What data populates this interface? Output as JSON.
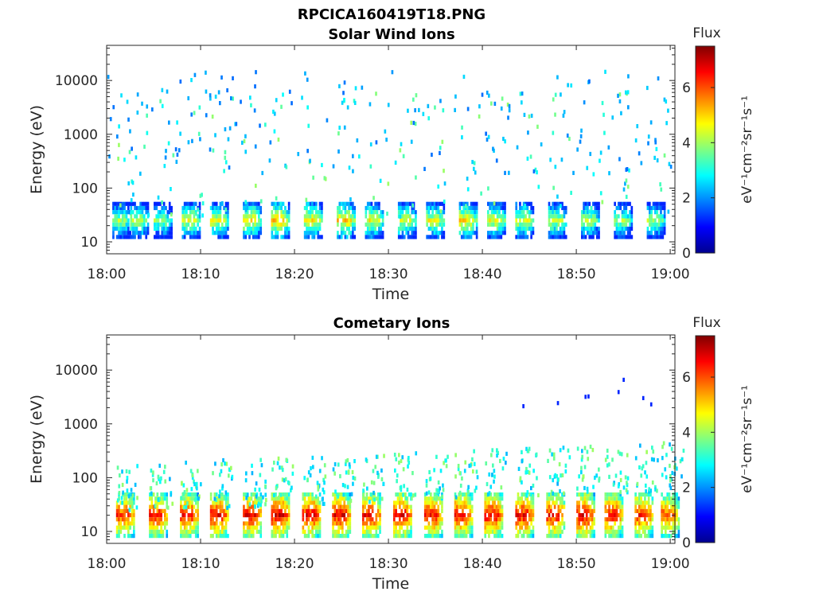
{
  "figure": {
    "title": "RPCICA160419T18.PNG",
    "colorbar_label": "eV⁻¹cm⁻²sr⁻¹s⁻¹",
    "colorbar_title": "Flux",
    "colorbar_ticks": [
      "0",
      "2",
      "4",
      "6"
    ],
    "colormap": [
      "#00008f",
      "#0000ff",
      "#0080ff",
      "#00ffff",
      "#80ff80",
      "#ffff00",
      "#ff8000",
      "#ff0000",
      "#800000"
    ]
  },
  "chart_data": [
    {
      "type": "heatmap",
      "title": "Solar Wind Ions",
      "xlabel": "Time",
      "ylabel": "Energy (eV)",
      "x_ticks": [
        "18:00",
        "18:10",
        "18:20",
        "18:30",
        "18:40",
        "18:50",
        "19:00"
      ],
      "y_ticks": [
        "10",
        "100",
        "1000",
        "10000"
      ],
      "y_scale": "log",
      "ylim": [
        6,
        45000
      ],
      "xlim_minutes": [
        0,
        60.5
      ],
      "clim": [
        0,
        7.5
      ],
      "bursts": [
        {
          "t": 0.6,
          "e": 25,
          "flux": 4.6
        },
        {
          "t": 2.5,
          "e": 25,
          "flux": 4.8
        },
        {
          "t": 5.0,
          "e": 25,
          "flux": 4.4
        },
        {
          "t": 8.0,
          "e": 25,
          "flux": 5.1
        },
        {
          "t": 11.0,
          "e": 25,
          "flux": 5.0
        },
        {
          "t": 14.5,
          "e": 25,
          "flux": 5.3
        },
        {
          "t": 17.5,
          "e": 25,
          "flux": 5.6
        },
        {
          "t": 21.0,
          "e": 25,
          "flux": 5.3
        },
        {
          "t": 24.5,
          "e": 25,
          "flux": 5.5
        },
        {
          "t": 27.5,
          "e": 25,
          "flux": 5.1
        },
        {
          "t": 31.0,
          "e": 25,
          "flux": 4.9
        },
        {
          "t": 34.0,
          "e": 25,
          "flux": 5.0
        },
        {
          "t": 37.5,
          "e": 25,
          "flux": 5.4
        },
        {
          "t": 40.5,
          "e": 25,
          "flux": 5.1
        },
        {
          "t": 43.5,
          "e": 25,
          "flux": 5.0
        },
        {
          "t": 47.0,
          "e": 25,
          "flux": 4.8
        },
        {
          "t": 50.5,
          "e": 25,
          "flux": 4.7
        },
        {
          "t": 54.0,
          "e": 25,
          "flux": 4.6
        },
        {
          "t": 57.5,
          "e": 25,
          "flux": 4.6
        }
      ]
    },
    {
      "type": "heatmap",
      "title": "Cometary Ions",
      "xlabel": "Time",
      "ylabel": "Energy (eV)",
      "x_ticks": [
        "18:00",
        "18:10",
        "18:20",
        "18:30",
        "18:40",
        "18:50",
        "19:00"
      ],
      "y_ticks": [
        "10",
        "100",
        "1000",
        "10000"
      ],
      "y_scale": "log",
      "ylim": [
        6,
        45000
      ],
      "xlim_minutes": [
        0,
        60.5
      ],
      "clim": [
        0,
        7.5
      ],
      "bursts": [
        {
          "t": 1.0,
          "e": 20,
          "flux": 6.8
        },
        {
          "t": 4.5,
          "e": 20,
          "flux": 7.0
        },
        {
          "t": 7.8,
          "e": 20,
          "flux": 7.0
        },
        {
          "t": 11.0,
          "e": 20,
          "flux": 7.1
        },
        {
          "t": 14.5,
          "e": 20,
          "flux": 7.2
        },
        {
          "t": 17.5,
          "e": 20,
          "flux": 7.3
        },
        {
          "t": 20.8,
          "e": 20,
          "flux": 7.2
        },
        {
          "t": 24.0,
          "e": 20,
          "flux": 7.2
        },
        {
          "t": 27.2,
          "e": 20,
          "flux": 7.1
        },
        {
          "t": 30.5,
          "e": 20,
          "flux": 7.2
        },
        {
          "t": 33.8,
          "e": 20,
          "flux": 7.0
        },
        {
          "t": 37.0,
          "e": 20,
          "flux": 7.1
        },
        {
          "t": 40.2,
          "e": 20,
          "flux": 7.2
        },
        {
          "t": 43.5,
          "e": 20,
          "flux": 7.2
        },
        {
          "t": 46.8,
          "e": 20,
          "flux": 7.1
        },
        {
          "t": 50.0,
          "e": 20,
          "flux": 7.2
        },
        {
          "t": 53.0,
          "e": 20,
          "flux": 7.0
        },
        {
          "t": 56.2,
          "e": 20,
          "flux": 6.9
        },
        {
          "t": 59.0,
          "e": 20,
          "flux": 6.6
        }
      ]
    }
  ]
}
